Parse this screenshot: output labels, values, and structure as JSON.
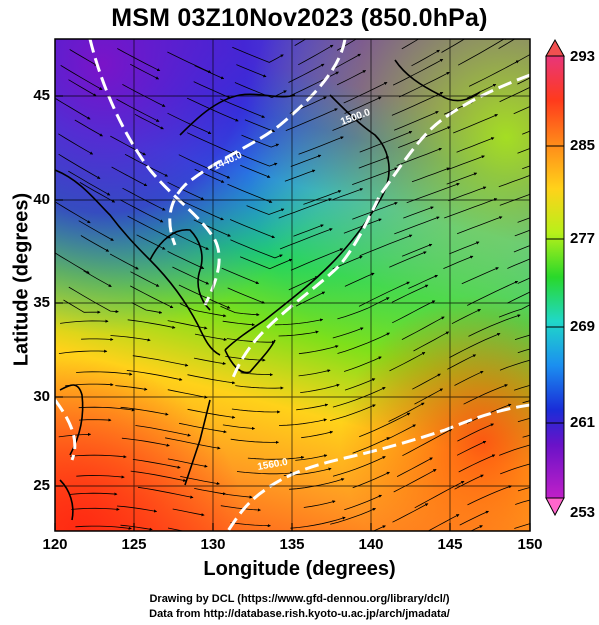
{
  "title": "MSM 03Z10Nov2023 (850.0hPa)",
  "xlabel": "Longitude (degrees)",
  "ylabel": "Latitude  (degrees)",
  "credits": {
    "line1": "Drawing by DCL (https://www.gfd-dennou.org/library/dcl/)",
    "line2": "Data from http://database.rish.kyoto-u.ac.jp/arch/jmadata/"
  },
  "x_ticks": [
    "120",
    "125",
    "130",
    "135",
    "140",
    "145",
    "150"
  ],
  "y_ticks": [
    "45",
    "40",
    "35",
    "30",
    "25"
  ],
  "colorbar": {
    "ticks": [
      "293",
      "285",
      "277",
      "269",
      "261",
      "253"
    ],
    "colors": [
      "#e8367a",
      "#ff3a1c",
      "#ff8b1a",
      "#ffd21a",
      "#b8f01a",
      "#29d82a",
      "#20d8c8",
      "#1b8ff0",
      "#1a2dd8",
      "#6a12c8",
      "#c020c8"
    ]
  },
  "contours": {
    "labels": [
      "1440.0",
      "1500.0",
      "1560.0"
    ]
  },
  "chart_data": {
    "type": "heatmap",
    "title": "MSM 03Z10Nov2023 (850.0hPa)",
    "xlabel": "Longitude (degrees)",
    "ylabel": "Latitude  (degrees)",
    "xlim": [
      120,
      150
    ],
    "ylim": [
      22.4,
      47.6
    ],
    "x_ticks": [
      120,
      125,
      130,
      135,
      140,
      145,
      150
    ],
    "y_ticks": [
      25,
      30,
      35,
      40,
      45
    ],
    "colorbar_range": [
      253,
      293
    ],
    "colorbar_ticks": [
      253,
      261,
      269,
      277,
      285,
      293
    ],
    "overlays": [
      "temperature shading",
      "streamlines",
      "geopotential height contours",
      "coastlines"
    ]
  }
}
